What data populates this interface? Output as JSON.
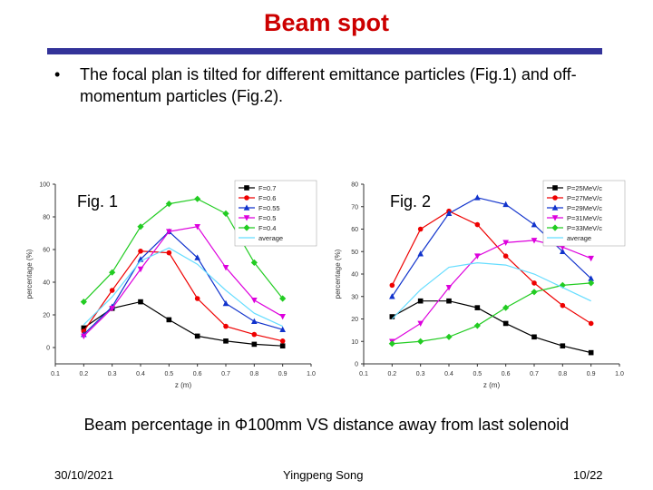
{
  "title": "Beam spot",
  "bullet": "The focal plan is tilted for different emittance particles (Fig.1) and off-momentum particles  (Fig.2).",
  "bullet_symbol": "•",
  "fig1_label": "Fig. 1",
  "fig2_label": "Fig. 2",
  "caption": "Beam percentage in Φ100mm VS distance away from last solenoid",
  "footer": {
    "date": "30/10/2021",
    "author": "Yingpeng Song",
    "page": "10/22"
  },
  "colors": {
    "title": "#cc0000",
    "rule": "#333399"
  },
  "chart_data": [
    {
      "type": "line",
      "title": "",
      "xlabel": "z (m)",
      "ylabel": "percentage (%)",
      "xlim": [
        0.1,
        1.0
      ],
      "ylim": [
        -10,
        100
      ],
      "xticks": [
        "0.1",
        "0.2",
        "0.3",
        "0.4",
        "0.5",
        "0.6",
        "0.7",
        "0.8",
        "0.9",
        "1.0"
      ],
      "yticks": [
        "0",
        "20",
        "40",
        "60",
        "80",
        "100"
      ],
      "x": [
        0.2,
        0.3,
        0.4,
        0.5,
        0.6,
        0.7,
        0.8,
        0.9
      ],
      "legend_position": "top-right",
      "series": [
        {
          "name": "F=0.7",
          "color": "#000000",
          "marker": "square",
          "values": [
            12,
            24,
            28,
            17,
            7,
            4,
            2,
            1
          ]
        },
        {
          "name": "F=0.6",
          "color": "#ee0000",
          "marker": "circle",
          "values": [
            10,
            35,
            59,
            58,
            30,
            13,
            8,
            4
          ]
        },
        {
          "name": "F=0.55",
          "color": "#1133cc",
          "marker": "triangle",
          "values": [
            8,
            25,
            54,
            71,
            55,
            27,
            16,
            11
          ]
        },
        {
          "name": "F=0.5",
          "color": "#dd00dd",
          "marker": "triangle-down",
          "values": [
            7,
            24,
            48,
            71,
            74,
            49,
            29,
            19
          ]
        },
        {
          "name": "F=0.4",
          "color": "#22cc22",
          "marker": "diamond",
          "values": [
            28,
            46,
            74,
            88,
            91,
            82,
            52,
            30
          ]
        },
        {
          "name": "average",
          "color": "#66ddff",
          "marker": "none",
          "values": [
            14,
            31,
            53,
            61,
            51,
            35,
            21,
            13
          ]
        }
      ]
    },
    {
      "type": "line",
      "title": "",
      "xlabel": "z (m)",
      "ylabel": "percentage (%)",
      "xlim": [
        0.1,
        1.0
      ],
      "ylim": [
        0,
        80
      ],
      "xticks": [
        "0.1",
        "0.2",
        "0.3",
        "0.4",
        "0.5",
        "0.6",
        "0.7",
        "0.8",
        "0.9",
        "1.0"
      ],
      "yticks": [
        "0",
        "10",
        "20",
        "30",
        "40",
        "50",
        "60",
        "70",
        "80"
      ],
      "x": [
        0.2,
        0.3,
        0.4,
        0.5,
        0.6,
        0.7,
        0.8,
        0.9
      ],
      "legend_position": "top-right",
      "series": [
        {
          "name": "P=25MeV/c",
          "color": "#000000",
          "marker": "square",
          "values": [
            21,
            28,
            28,
            25,
            18,
            12,
            8,
            5
          ]
        },
        {
          "name": "P=27MeV/c",
          "color": "#ee0000",
          "marker": "circle",
          "values": [
            35,
            60,
            68,
            62,
            48,
            36,
            26,
            18
          ]
        },
        {
          "name": "P=29MeV/c",
          "color": "#1133cc",
          "marker": "triangle",
          "values": [
            30,
            49,
            67,
            74,
            71,
            62,
            50,
            38
          ]
        },
        {
          "name": "P=31MeV/c",
          "color": "#dd00dd",
          "marker": "triangle-down",
          "values": [
            10,
            18,
            34,
            48,
            54,
            55,
            52,
            47
          ]
        },
        {
          "name": "P=33MeV/c",
          "color": "#22cc22",
          "marker": "diamond",
          "values": [
            9,
            10,
            12,
            17,
            25,
            32,
            35,
            36
          ]
        },
        {
          "name": "average",
          "color": "#66ddff",
          "marker": "none",
          "values": [
            20,
            33,
            43,
            45,
            44,
            40,
            34,
            28
          ]
        }
      ]
    }
  ]
}
